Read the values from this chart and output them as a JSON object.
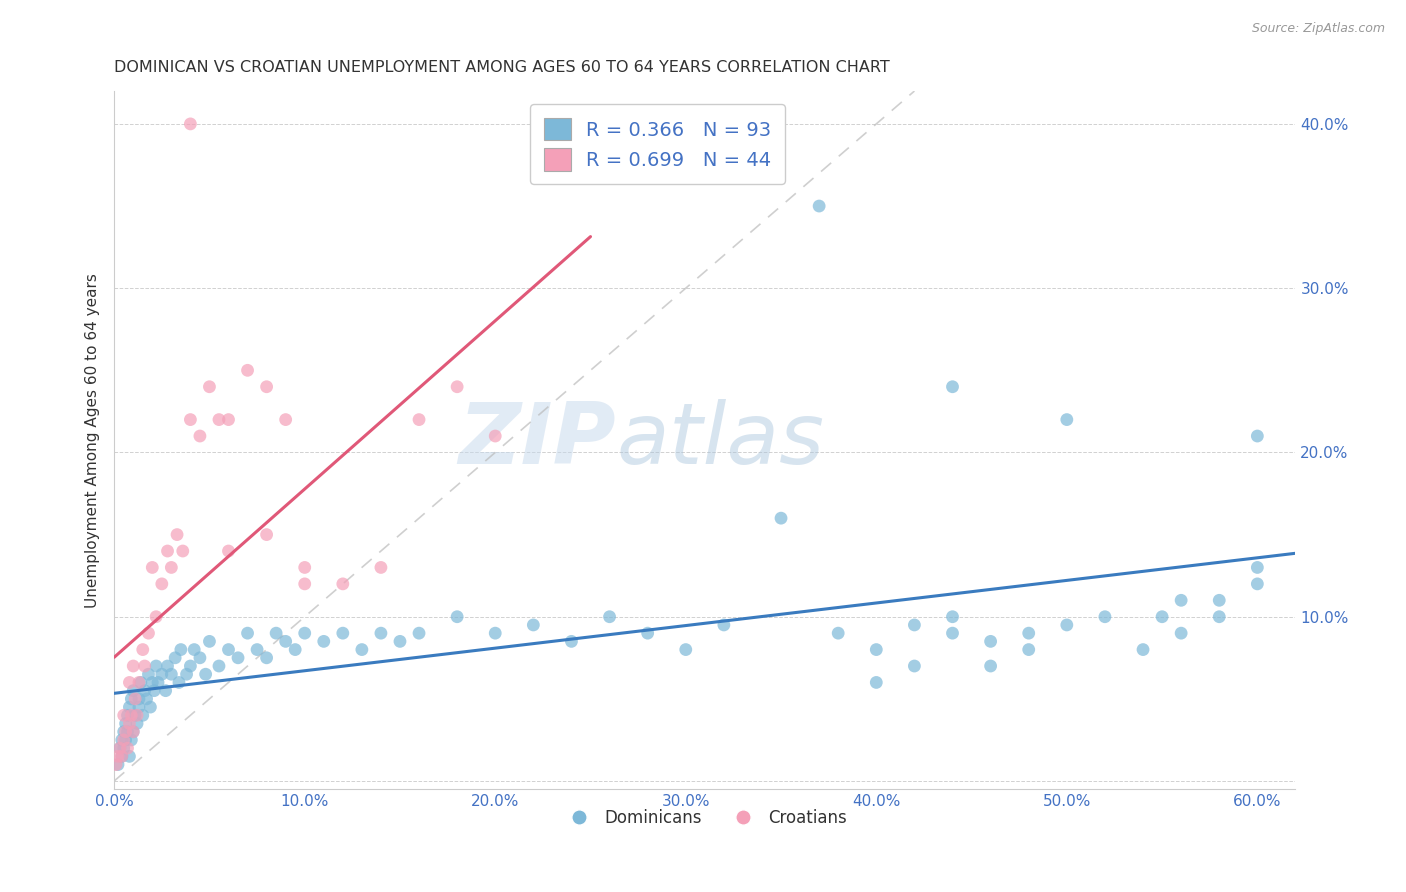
{
  "title": "DOMINICAN VS CROATIAN UNEMPLOYMENT AMONG AGES 60 TO 64 YEARS CORRELATION CHART",
  "source": "Source: ZipAtlas.com",
  "ylabel": "Unemployment Among Ages 60 to 64 years",
  "xlim": [
    0.0,
    0.62
  ],
  "ylim": [
    -0.005,
    0.42
  ],
  "xticks": [
    0.0,
    0.1,
    0.2,
    0.3,
    0.4,
    0.5,
    0.6
  ],
  "yticks": [
    0.0,
    0.1,
    0.2,
    0.3,
    0.4
  ],
  "xtick_labels": [
    "0.0%",
    "10.0%",
    "20.0%",
    "30.0%",
    "40.0%",
    "50.0%",
    "60.0%"
  ],
  "ytick_labels_right": [
    "10.0%",
    "20.0%",
    "30.0%",
    "40.0%"
  ],
  "dominican_color": "#7db8d8",
  "croatian_color": "#f4a0b8",
  "trendline_dominican_color": "#3a7bbf",
  "trendline_croatian_color": "#e05878",
  "watermark_zip": "ZIP",
  "watermark_atlas": "atlas",
  "legend_label1": "R = 0.366   N = 93",
  "legend_label2": "R = 0.699   N = 44",
  "bottom_legend_dominicans": "Dominicans",
  "bottom_legend_croatians": "Croatians",
  "dom_x": [
    0.002,
    0.003,
    0.004,
    0.004,
    0.005,
    0.005,
    0.006,
    0.006,
    0.007,
    0.007,
    0.008,
    0.008,
    0.009,
    0.009,
    0.01,
    0.01,
    0.011,
    0.012,
    0.013,
    0.013,
    0.014,
    0.015,
    0.016,
    0.017,
    0.018,
    0.019,
    0.02,
    0.021,
    0.022,
    0.023,
    0.025,
    0.027,
    0.028,
    0.03,
    0.032,
    0.034,
    0.035,
    0.038,
    0.04,
    0.042,
    0.045,
    0.048,
    0.05,
    0.055,
    0.06,
    0.065,
    0.07,
    0.075,
    0.08,
    0.085,
    0.09,
    0.095,
    0.1,
    0.11,
    0.12,
    0.13,
    0.14,
    0.15,
    0.16,
    0.18,
    0.2,
    0.22,
    0.24,
    0.26,
    0.28,
    0.3,
    0.32,
    0.35,
    0.38,
    0.4,
    0.42,
    0.44,
    0.46,
    0.48,
    0.5,
    0.52,
    0.54,
    0.56,
    0.58,
    0.6,
    0.37,
    0.5,
    0.55,
    0.58,
    0.6,
    0.44,
    0.46,
    0.48,
    0.4,
    0.42,
    0.44,
    0.6,
    0.56
  ],
  "dom_y": [
    0.01,
    0.02,
    0.015,
    0.025,
    0.02,
    0.03,
    0.025,
    0.035,
    0.03,
    0.04,
    0.015,
    0.045,
    0.025,
    0.05,
    0.03,
    0.055,
    0.04,
    0.035,
    0.05,
    0.045,
    0.06,
    0.04,
    0.055,
    0.05,
    0.065,
    0.045,
    0.06,
    0.055,
    0.07,
    0.06,
    0.065,
    0.055,
    0.07,
    0.065,
    0.075,
    0.06,
    0.08,
    0.065,
    0.07,
    0.08,
    0.075,
    0.065,
    0.085,
    0.07,
    0.08,
    0.075,
    0.09,
    0.08,
    0.075,
    0.09,
    0.085,
    0.08,
    0.09,
    0.085,
    0.09,
    0.08,
    0.09,
    0.085,
    0.09,
    0.1,
    0.09,
    0.095,
    0.085,
    0.1,
    0.09,
    0.08,
    0.095,
    0.16,
    0.09,
    0.08,
    0.095,
    0.1,
    0.085,
    0.09,
    0.095,
    0.1,
    0.08,
    0.11,
    0.1,
    0.13,
    0.35,
    0.22,
    0.1,
    0.11,
    0.12,
    0.24,
    0.07,
    0.08,
    0.06,
    0.07,
    0.09,
    0.21,
    0.09
  ],
  "cro_x": [
    0.001,
    0.002,
    0.003,
    0.004,
    0.005,
    0.005,
    0.006,
    0.007,
    0.008,
    0.008,
    0.009,
    0.01,
    0.01,
    0.011,
    0.012,
    0.013,
    0.015,
    0.016,
    0.018,
    0.02,
    0.022,
    0.025,
    0.028,
    0.03,
    0.033,
    0.036,
    0.04,
    0.045,
    0.05,
    0.055,
    0.06,
    0.07,
    0.08,
    0.09,
    0.1,
    0.12,
    0.14,
    0.16,
    0.18,
    0.2,
    0.04,
    0.06,
    0.08,
    0.1
  ],
  "cro_y": [
    0.01,
    0.015,
    0.02,
    0.015,
    0.025,
    0.04,
    0.03,
    0.02,
    0.035,
    0.06,
    0.04,
    0.03,
    0.07,
    0.05,
    0.04,
    0.06,
    0.08,
    0.07,
    0.09,
    0.13,
    0.1,
    0.12,
    0.14,
    0.13,
    0.15,
    0.14,
    0.22,
    0.21,
    0.24,
    0.22,
    0.22,
    0.25,
    0.24,
    0.22,
    0.13,
    0.12,
    0.13,
    0.22,
    0.24,
    0.21,
    0.4,
    0.14,
    0.15,
    0.12
  ]
}
